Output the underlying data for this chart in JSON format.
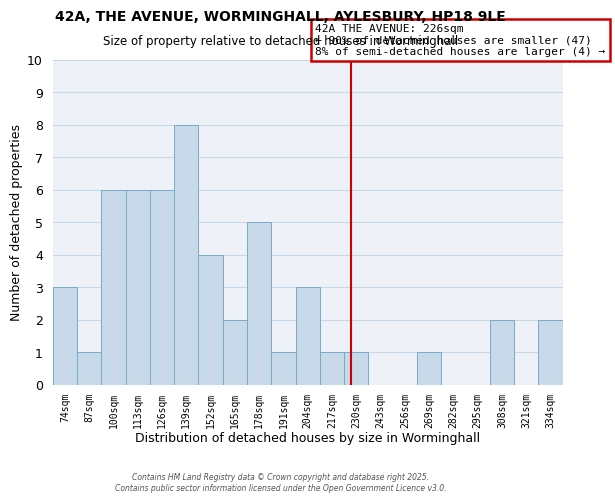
{
  "title": "42A, THE AVENUE, WORMINGHALL, AYLESBURY, HP18 9LE",
  "subtitle": "Size of property relative to detached houses in Worminghall",
  "xlabel": "Distribution of detached houses by size in Worminghall",
  "ylabel": "Number of detached properties",
  "bin_labels": [
    "74sqm",
    "87sqm",
    "100sqm",
    "113sqm",
    "126sqm",
    "139sqm",
    "152sqm",
    "165sqm",
    "178sqm",
    "191sqm",
    "204sqm",
    "217sqm",
    "230sqm",
    "243sqm",
    "256sqm",
    "269sqm",
    "282sqm",
    "295sqm",
    "308sqm",
    "321sqm",
    "334sqm"
  ],
  "bar_heights": [
    3,
    1,
    6,
    6,
    6,
    8,
    4,
    2,
    5,
    1,
    3,
    1,
    1,
    0,
    0,
    1,
    0,
    0,
    2,
    0,
    2
  ],
  "bar_color": "#c8daea",
  "bar_edgecolor": "#7aaac8",
  "grid_color": "#c8d8e8",
  "background_color": "#eef2f8",
  "vline_x": 11.77,
  "vline_color": "#cc0000",
  "ylim": [
    0,
    10
  ],
  "yticks": [
    0,
    1,
    2,
    3,
    4,
    5,
    6,
    7,
    8,
    9,
    10
  ],
  "annotation_title": "42A THE AVENUE: 226sqm",
  "annotation_line1": "← 90% of detached houses are smaller (47)",
  "annotation_line2": "8% of semi-detached houses are larger (4) →",
  "annotation_box_edgecolor": "#cc0000",
  "footnote1": "Contains HM Land Registry data © Crown copyright and database right 2025.",
  "footnote2": "Contains public sector information licensed under the Open Government Licence v3.0."
}
